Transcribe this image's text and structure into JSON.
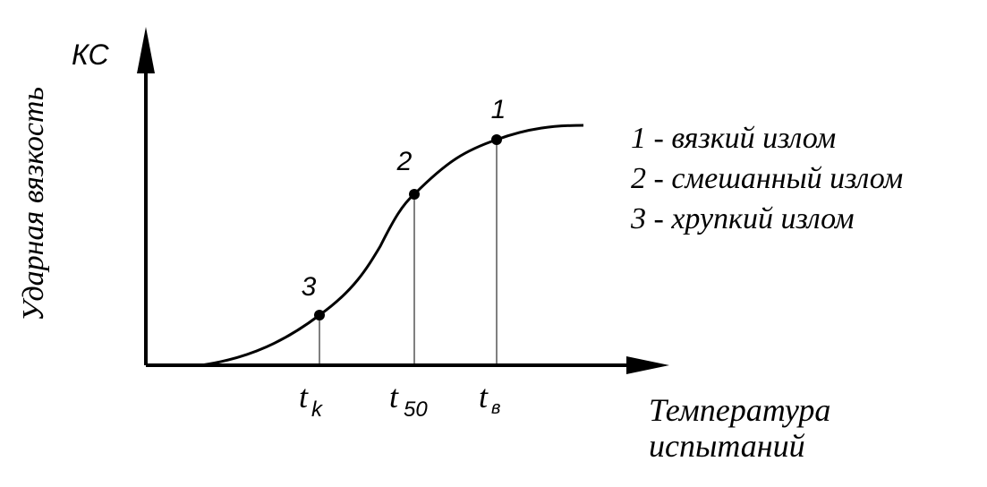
{
  "diagram": {
    "y_axis": {
      "label": "КС",
      "title": "Ударная вязкость"
    },
    "x_axis": {
      "title_lines": [
        "Температура",
        "испытаний"
      ]
    },
    "points": [
      {
        "label": "3",
        "tick": {
          "main": "t",
          "sub": "k"
        }
      },
      {
        "label": "2",
        "tick": {
          "main": "t",
          "sub": "50"
        }
      },
      {
        "label": "1",
        "tick": {
          "main": "t",
          "sub": "в"
        }
      }
    ],
    "legend": [
      "1 - вязкий излом",
      "2 - смешанный излом",
      "3 - хрупкий излом"
    ]
  }
}
